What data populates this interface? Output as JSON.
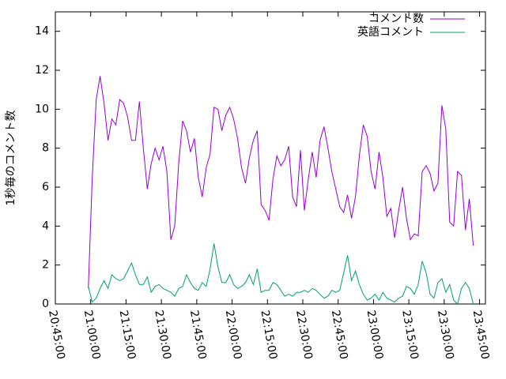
{
  "chart_data": {
    "type": "line",
    "y_label": "1秒毎のコメント数",
    "x": [
      "20:59:00",
      "21:00:40",
      "21:02:20",
      "21:04:00",
      "21:05:40",
      "21:07:20",
      "21:09:00",
      "21:10:40",
      "21:12:20",
      "21:14:00",
      "21:15:40",
      "21:17:20",
      "21:19:00",
      "21:20:40",
      "21:22:20",
      "21:24:00",
      "21:25:40",
      "21:27:20",
      "21:29:00",
      "21:30:40",
      "21:32:20",
      "21:34:00",
      "21:35:40",
      "21:37:20",
      "21:39:00",
      "21:40:40",
      "21:42:20",
      "21:44:00",
      "21:45:40",
      "21:47:20",
      "21:49:00",
      "21:50:40",
      "21:52:20",
      "21:54:00",
      "21:55:40",
      "21:57:20",
      "21:59:00",
      "22:00:40",
      "22:02:20",
      "22:04:00",
      "22:05:40",
      "22:07:20",
      "22:09:00",
      "22:10:40",
      "22:12:20",
      "22:14:00",
      "22:15:40",
      "22:17:20",
      "22:19:00",
      "22:20:40",
      "22:22:20",
      "22:24:00",
      "22:25:40",
      "22:27:20",
      "22:29:00",
      "22:30:40",
      "22:32:20",
      "22:34:00",
      "22:35:40",
      "22:37:20",
      "22:39:00",
      "22:40:40",
      "22:42:20",
      "22:44:00",
      "22:45:40",
      "22:47:20",
      "22:49:00",
      "22:50:40",
      "22:52:20",
      "22:54:00",
      "22:55:40",
      "22:57:20",
      "22:59:00",
      "23:00:40",
      "23:02:20",
      "23:04:00",
      "23:05:40",
      "23:07:20",
      "23:09:00",
      "23:10:40",
      "23:12:20",
      "23:14:00",
      "23:15:40",
      "23:17:20",
      "23:19:00",
      "23:20:40",
      "23:22:20",
      "23:24:00",
      "23:25:40",
      "23:27:20",
      "23:29:00",
      "23:30:40",
      "23:32:20",
      "23:34:00",
      "23:35:40",
      "23:37:20",
      "23:39:00",
      "23:40:40",
      "23:42:20"
    ],
    "series": [
      {
        "name": "コメント数",
        "color": "#9400d3",
        "values": [
          0.8,
          6.5,
          10.5,
          11.7,
          10.3,
          8.4,
          9.5,
          9.2,
          10.5,
          10.3,
          9.6,
          8.4,
          8.4,
          10.4,
          8.0,
          5.9,
          7.2,
          8.0,
          7.4,
          8.1,
          6.8,
          3.3,
          4.0,
          7.2,
          9.4,
          8.9,
          7.8,
          8.5,
          6.5,
          5.5,
          7.0,
          7.7,
          10.1,
          10.0,
          8.9,
          9.7,
          10.1,
          9.5,
          8.5,
          7.0,
          6.2,
          7.5,
          8.4,
          8.9,
          5.1,
          4.8,
          4.3,
          6.4,
          7.6,
          7.1,
          7.4,
          8.1,
          5.5,
          5.0,
          7.9,
          4.8,
          6.4,
          7.8,
          6.5,
          8.4,
          9.1,
          8.0,
          6.8,
          5.9,
          5.0,
          4.7,
          5.6,
          4.4,
          5.5,
          7.6,
          9.2,
          8.6,
          6.8,
          5.9,
          7.8,
          6.5,
          4.5,
          4.9,
          3.4,
          4.8,
          6.0,
          4.4,
          3.3,
          3.6,
          3.5,
          6.8,
          7.1,
          6.7,
          5.8,
          6.2,
          10.2,
          9.0,
          4.2,
          4.0,
          6.8,
          6.6,
          3.8,
          5.4,
          3.0
        ]
      },
      {
        "name": "英語コメント",
        "color": "#009e73",
        "values": [
          0.9,
          0.1,
          0.3,
          0.8,
          1.2,
          0.8,
          1.5,
          1.3,
          1.2,
          1.3,
          1.7,
          2.1,
          1.5,
          1.0,
          1.0,
          1.4,
          0.6,
          0.9,
          1.0,
          0.8,
          0.7,
          0.6,
          0.4,
          0.8,
          0.9,
          1.5,
          1.1,
          0.8,
          0.7,
          1.1,
          0.9,
          1.8,
          3.1,
          1.9,
          1.1,
          1.1,
          1.5,
          1.0,
          0.8,
          0.9,
          1.1,
          1.5,
          1.0,
          1.8,
          0.6,
          0.7,
          0.7,
          1.1,
          1.0,
          0.7,
          0.4,
          0.5,
          0.4,
          0.6,
          0.6,
          0.7,
          0.6,
          0.8,
          0.7,
          0.5,
          0.3,
          0.4,
          0.7,
          0.6,
          0.7,
          1.6,
          2.5,
          1.2,
          1.7,
          1.0,
          0.5,
          0.2,
          0.3,
          0.5,
          0.2,
          0.6,
          0.3,
          0.2,
          0.1,
          0.3,
          0.4,
          0.9,
          0.8,
          0.5,
          1.0,
          2.2,
          1.6,
          0.5,
          0.3,
          1.1,
          1.3,
          0.6,
          1.0,
          0.2,
          0.0,
          0.8,
          1.1,
          0.8,
          0.0
        ]
      }
    ],
    "xlim": [
      "20:45:00",
      "23:47:30"
    ],
    "xticks": [
      "20:45:00",
      "21:00:00",
      "21:15:00",
      "21:30:00",
      "21:45:00",
      "22:00:00",
      "22:15:00",
      "22:30:00",
      "22:45:00",
      "23:00:00",
      "23:15:00",
      "23:30:00",
      "23:45:00"
    ],
    "ylim": [
      0,
      15
    ],
    "yticks": [
      0,
      2,
      4,
      6,
      8,
      10,
      12,
      14
    ],
    "legend": "top-right"
  }
}
